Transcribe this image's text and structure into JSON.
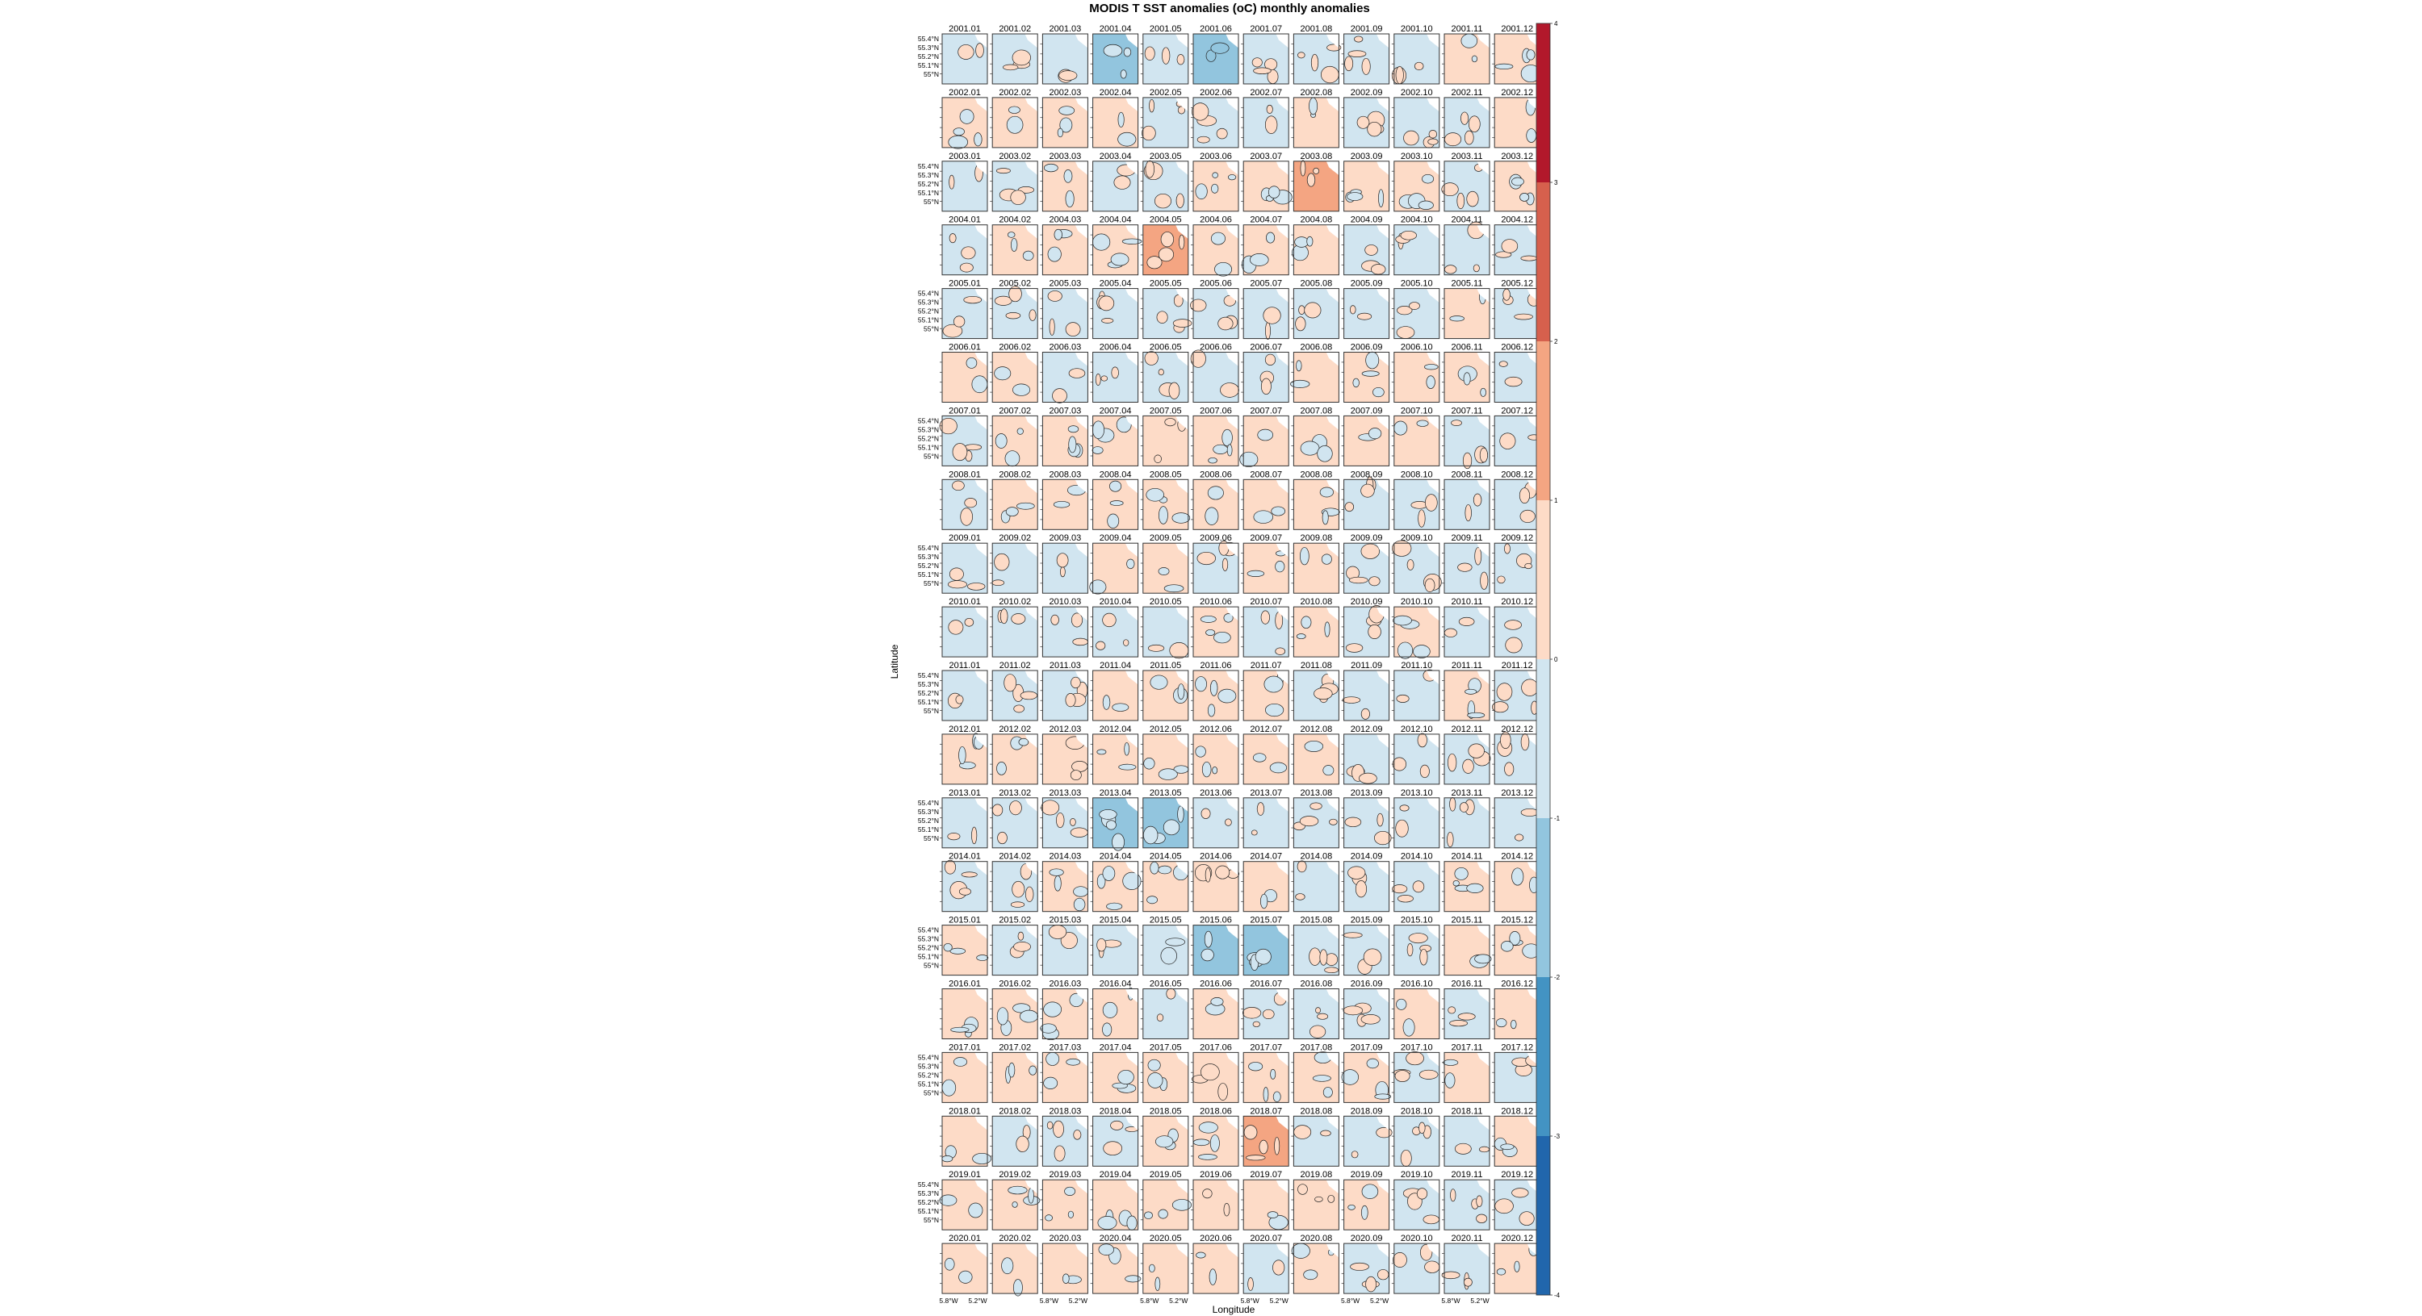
{
  "chart_data": {
    "type": "heatmap",
    "title": "MODIS T SST anomalies (oC) monthly anomalies",
    "xlabel": "Longitude",
    "ylabel": "Latitude",
    "layout": {
      "rows": 20,
      "cols": 12
    },
    "years": [
      "2001",
      "2002",
      "2003",
      "2004",
      "2005",
      "2006",
      "2007",
      "2008",
      "2009",
      "2010",
      "2011",
      "2012",
      "2013",
      "2014",
      "2015",
      "2016",
      "2017",
      "2018",
      "2019",
      "2020"
    ],
    "months": [
      "01",
      "02",
      "03",
      "04",
      "05",
      "06",
      "07",
      "08",
      "09",
      "10",
      "11",
      "12"
    ],
    "lat_ticks": [
      "55.4°N",
      "55.3°N",
      "55.2°N",
      "55.1°N",
      "55°N"
    ],
    "lon_ticks": [
      "5.8°W",
      "5.2°W"
    ],
    "colorbar": {
      "range": [
        -4,
        4
      ],
      "ticks": [
        -4,
        -3,
        -2,
        -1,
        0,
        1,
        2,
        3,
        4
      ],
      "colors": [
        "#2166ac",
        "#4393c3",
        "#92c5de",
        "#d1e5f0",
        "#fddbc7",
        "#f4a582",
        "#d6604d",
        "#b2182b"
      ]
    },
    "anomaly_grid": [
      [
        -0.3,
        -0.3,
        -0.2,
        -1.2,
        -0.5,
        -1.8,
        -0.6,
        -0.3,
        -0.3,
        -0.2,
        0.2,
        0.2
      ],
      [
        0.3,
        0.3,
        0.2,
        0.3,
        -0.2,
        -0.3,
        -0.2,
        0.4,
        -0.1,
        -0.2,
        -0.2,
        0.3
      ],
      [
        -0.3,
        -0.1,
        0.1,
        -0.2,
        -0.3,
        0.2,
        0.3,
        1.4,
        0.4,
        0.3,
        -0.1,
        0.2
      ],
      [
        -0.1,
        0.2,
        0.2,
        0.2,
        1.2,
        0.5,
        0.2,
        0.4,
        -0.2,
        -0.2,
        -0.3,
        -0.2
      ],
      [
        -0.3,
        -0.2,
        -0.1,
        -0.2,
        -0.3,
        -0.2,
        -0.3,
        -0.4,
        -0.3,
        -0.3,
        0.2,
        -0.2
      ],
      [
        0.3,
        0.3,
        -0.2,
        -0.3,
        -0.2,
        -0.3,
        -0.3,
        0.2,
        0.3,
        0.4,
        0.2,
        -0.4
      ],
      [
        -0.3,
        0.2,
        0.2,
        0.3,
        0.6,
        0.4,
        0.2,
        0.2,
        0.3,
        0.3,
        -0.2,
        -0.3
      ],
      [
        -0.2,
        0.2,
        0.2,
        0.3,
        0.2,
        0.2,
        0.3,
        0.4,
        -0.2,
        -0.2,
        -0.2,
        -0.3
      ],
      [
        -0.3,
        -0.3,
        -0.2,
        0.3,
        0.2,
        -0.2,
        0.3,
        0.2,
        -0.2,
        -0.2,
        -0.2,
        -0.3
      ],
      [
        -0.3,
        -0.3,
        -0.3,
        -0.3,
        -0.3,
        0.4,
        -0.4,
        0.3,
        -0.3,
        0.2,
        -0.2,
        -0.6
      ],
      [
        -0.5,
        -0.3,
        -0.2,
        0.4,
        0.2,
        0.3,
        0.2,
        -0.2,
        -0.3,
        -0.2,
        0.2,
        -0.3
      ],
      [
        0.2,
        0.2,
        0.6,
        0.2,
        0.3,
        0.3,
        0.3,
        0.2,
        -0.2,
        -0.2,
        -0.2,
        -0.2
      ],
      [
        -0.3,
        -0.3,
        -0.3,
        -1.5,
        -1.5,
        -0.5,
        -0.6,
        -0.3,
        -0.3,
        -0.3,
        -0.3,
        -0.3
      ],
      [
        -0.2,
        -0.2,
        0.2,
        0.3,
        0.3,
        0.6,
        0.4,
        -0.2,
        -0.2,
        -0.2,
        0.3,
        0.2
      ],
      [
        0.3,
        -0.2,
        -0.2,
        -0.2,
        -0.8,
        -1.2,
        -1.3,
        -0.4,
        -0.3,
        -0.2,
        0.2,
        0.3
      ],
      [
        0.2,
        0.2,
        0.2,
        0.3,
        -0.4,
        0.2,
        -0.3,
        -0.2,
        -0.2,
        0.2,
        -0.2,
        0.2
      ],
      [
        0.3,
        0.3,
        0.3,
        0.3,
        0.3,
        0.6,
        0.3,
        0.3,
        0.3,
        -0.2,
        0.3,
        -0.2
      ],
      [
        0.3,
        -0.3,
        -0.5,
        -0.6,
        0.3,
        0.5,
        1.2,
        -0.3,
        -0.3,
        -0.4,
        -0.3,
        0.2
      ],
      [
        0.3,
        0.3,
        0.2,
        0.3,
        0.3,
        0.7,
        0.3,
        0.6,
        0.3,
        -0.2,
        -0.2,
        -0.3
      ],
      [
        0.3,
        0.3,
        0.3,
        0.3,
        0.3,
        0.2,
        -0.3,
        0.3,
        -0.2,
        -0.2,
        -0.3,
        0.3
      ]
    ]
  }
}
